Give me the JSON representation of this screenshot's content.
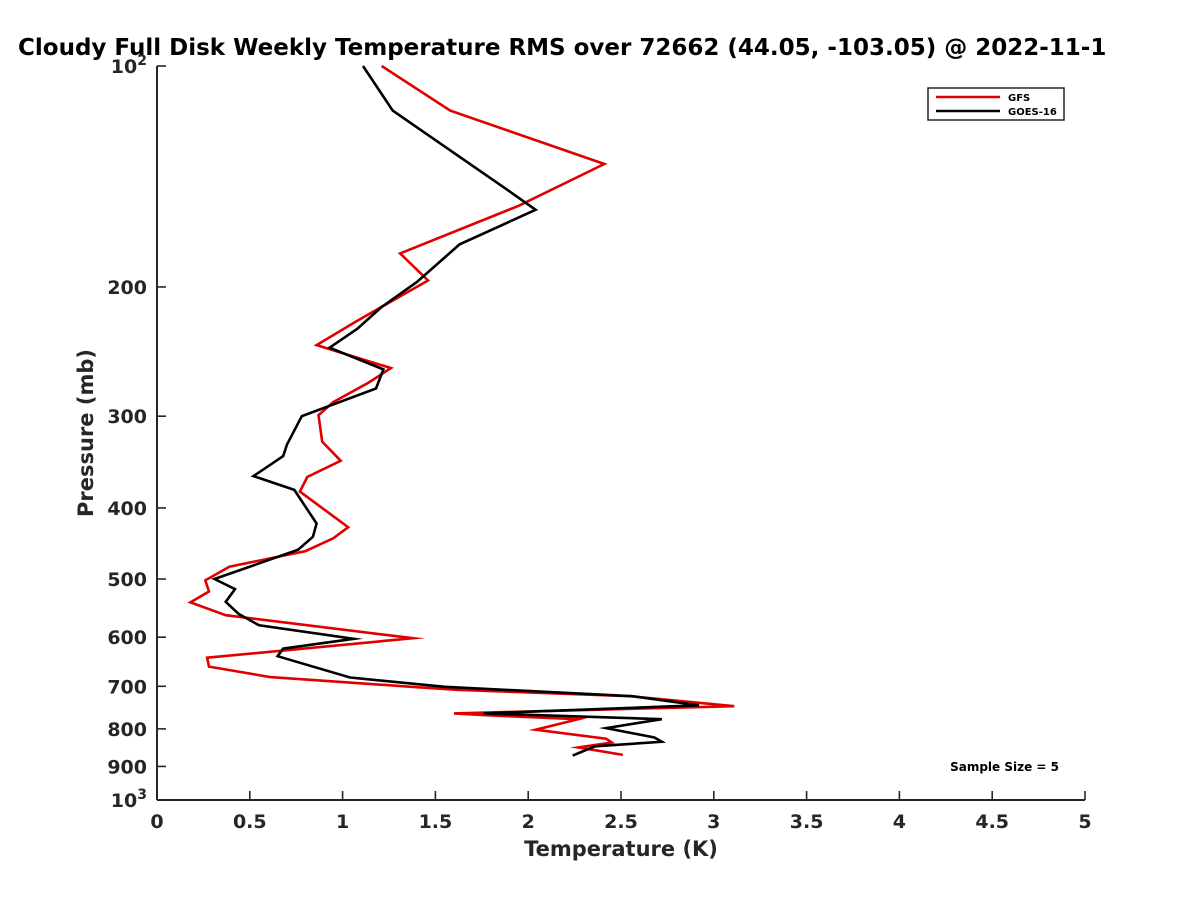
{
  "chart_data": {
    "type": "line",
    "title": "Cloudy Full Disk Weekly Temperature RMS over 72662 (44.05, -103.05) @ 2022-11-1",
    "xlabel": "Temperature (K)",
    "ylabel": "Pressure (mb)",
    "xlim": [
      0,
      5
    ],
    "ylim": [
      100,
      1000
    ],
    "y_scale": "log",
    "y_reversed": true,
    "grid": false,
    "legend_position": "top-right",
    "x_ticks": [
      "0",
      "0.5",
      "1",
      "1.5",
      "2",
      "2.5",
      "3",
      "3.5",
      "4",
      "4.5",
      "5"
    ],
    "y_ticks": [
      {
        "value": 100,
        "label": "10",
        "sup": "2"
      },
      {
        "value": 200,
        "label": "200",
        "sup": ""
      },
      {
        "value": 300,
        "label": "300",
        "sup": ""
      },
      {
        "value": 400,
        "label": "400",
        "sup": ""
      },
      {
        "value": 500,
        "label": "500",
        "sup": ""
      },
      {
        "value": 600,
        "label": "600",
        "sup": ""
      },
      {
        "value": 700,
        "label": "700",
        "sup": ""
      },
      {
        "value": 800,
        "label": "800",
        "sup": ""
      },
      {
        "value": 900,
        "label": "900",
        "sup": ""
      },
      {
        "value": 1000,
        "label": "10",
        "sup": "3"
      }
    ],
    "annotation": "Sample Size = 5",
    "series": [
      {
        "name": "GFS",
        "color": "#e00000",
        "points": [
          [
            1.21,
            100
          ],
          [
            1.58,
            115
          ],
          [
            2.41,
            136
          ],
          [
            1.95,
            155
          ],
          [
            1.31,
            180
          ],
          [
            1.46,
            196
          ],
          [
            1.07,
            223
          ],
          [
            0.86,
            240
          ],
          [
            1.26,
            258
          ],
          [
            1.14,
            270
          ],
          [
            0.95,
            287
          ],
          [
            0.87,
            299
          ],
          [
            0.89,
            325
          ],
          [
            0.99,
            345
          ],
          [
            0.81,
            363
          ],
          [
            0.77,
            380
          ],
          [
            1.03,
            425
          ],
          [
            0.95,
            440
          ],
          [
            0.8,
            458
          ],
          [
            0.39,
            481
          ],
          [
            0.26,
            502
          ],
          [
            0.28,
            520
          ],
          [
            0.18,
            538
          ],
          [
            0.37,
            560
          ],
          [
            1.38,
            602
          ],
          [
            0.27,
            640
          ],
          [
            0.28,
            658
          ],
          [
            0.61,
            680
          ],
          [
            1.4,
            702
          ],
          [
            1.63,
            708
          ],
          [
            2.55,
            722
          ],
          [
            3.11,
            745
          ],
          [
            1.6,
            762
          ],
          [
            1.8,
            767
          ],
          [
            2.27,
            776
          ],
          [
            2.04,
            802
          ],
          [
            2.42,
            825
          ],
          [
            2.45,
            835
          ],
          [
            2.27,
            848
          ],
          [
            2.51,
            868
          ]
        ]
      },
      {
        "name": "GOES-16",
        "color": "#000000",
        "points": [
          [
            1.11,
            100
          ],
          [
            1.27,
            115
          ],
          [
            1.88,
            147
          ],
          [
            2.04,
            157
          ],
          [
            1.63,
            175
          ],
          [
            1.4,
            197
          ],
          [
            1.21,
            213
          ],
          [
            1.08,
            228
          ],
          [
            0.93,
            242
          ],
          [
            1.22,
            259
          ],
          [
            1.18,
            275
          ],
          [
            0.78,
            300
          ],
          [
            0.7,
            328
          ],
          [
            0.68,
            340
          ],
          [
            0.52,
            362
          ],
          [
            0.74,
            378
          ],
          [
            0.86,
            420
          ],
          [
            0.84,
            438
          ],
          [
            0.76,
            456
          ],
          [
            0.53,
            478
          ],
          [
            0.31,
            500
          ],
          [
            0.42,
            516
          ],
          [
            0.37,
            537
          ],
          [
            0.44,
            558
          ],
          [
            0.55,
            578
          ],
          [
            1.06,
            603
          ],
          [
            0.68,
            622
          ],
          [
            0.65,
            637
          ],
          [
            1.04,
            681
          ],
          [
            1.55,
            701
          ],
          [
            2.56,
            722
          ],
          [
            2.92,
            743
          ],
          [
            1.76,
            762
          ],
          [
            2.72,
            776
          ],
          [
            2.42,
            798
          ],
          [
            2.68,
            822
          ],
          [
            2.72,
            833
          ],
          [
            2.36,
            845
          ],
          [
            2.24,
            870
          ]
        ]
      }
    ]
  }
}
